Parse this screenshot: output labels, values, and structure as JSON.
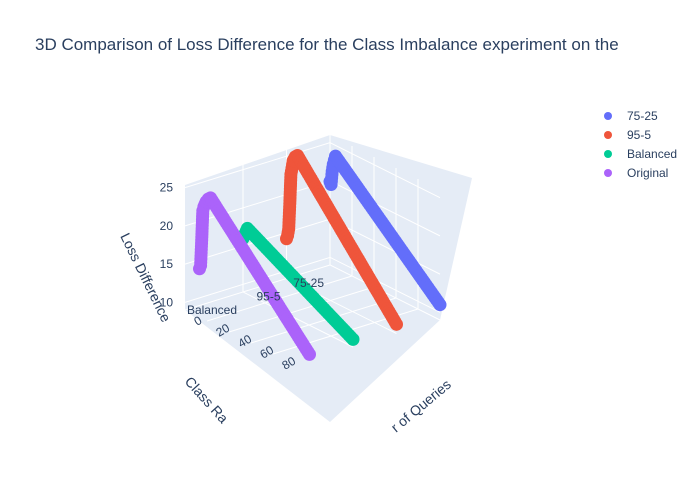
{
  "chart_data": {
    "type": "scatter3d",
    "title": "3D Comparison of Loss Difference for the Class Imbalance experiment on the",
    "scene": {
      "x_title": "Number of Queries",
      "x_title_visible": "r of Queries",
      "y_title": "Class Ra",
      "z_title": "Loss Difference",
      "x_range": [
        0,
        100
      ],
      "x_ticks": [
        0,
        20,
        40,
        60,
        80
      ],
      "y_categories": [
        "75-25",
        "95-5",
        "Balanced",
        "Original"
      ],
      "y_ticks_visible": [
        "75-25",
        "95-5",
        "Balanced"
      ],
      "z_range": [
        9,
        26
      ],
      "z_ticks": [
        10,
        15,
        20,
        25
      ]
    },
    "legend": {
      "placement": "top-right",
      "entries": [
        "75-25",
        "95-5",
        "Balanced",
        "Original"
      ]
    },
    "series": [
      {
        "name": "75-25",
        "color": "#636efa",
        "category": "75-25",
        "x": [
          0,
          1,
          2,
          3,
          4,
          5,
          100
        ],
        "y": [
          19.9,
          19.6,
          21.4,
          22.4,
          23.0,
          23.6,
          11.0
        ]
      },
      {
        "name": "95-5",
        "color": "#ef553b",
        "category": "95-5",
        "x": [
          0,
          1,
          2,
          3,
          4,
          5,
          6,
          8,
          10,
          100
        ],
        "y": [
          14.2,
          14.7,
          15.6,
          19.0,
          22.9,
          23.8,
          24.8,
          25.5,
          25.8,
          10.2
        ]
      },
      {
        "name": "Balanced",
        "color": "#00cc96",
        "category": "Balanced",
        "x": [
          0,
          2,
          4,
          100
        ],
        "y": [
          16.0,
          16.8,
          17.6,
          10.0
        ]
      },
      {
        "name": "Original",
        "color": "#ab63fa",
        "category": "Original",
        "x": [
          0,
          1,
          2,
          3,
          4,
          5,
          6,
          8,
          10,
          100
        ],
        "y": [
          13.8,
          14.3,
          17.7,
          21.6,
          22.2,
          22.6,
          23.0,
          23.5,
          23.8,
          9.8
        ]
      }
    ]
  }
}
